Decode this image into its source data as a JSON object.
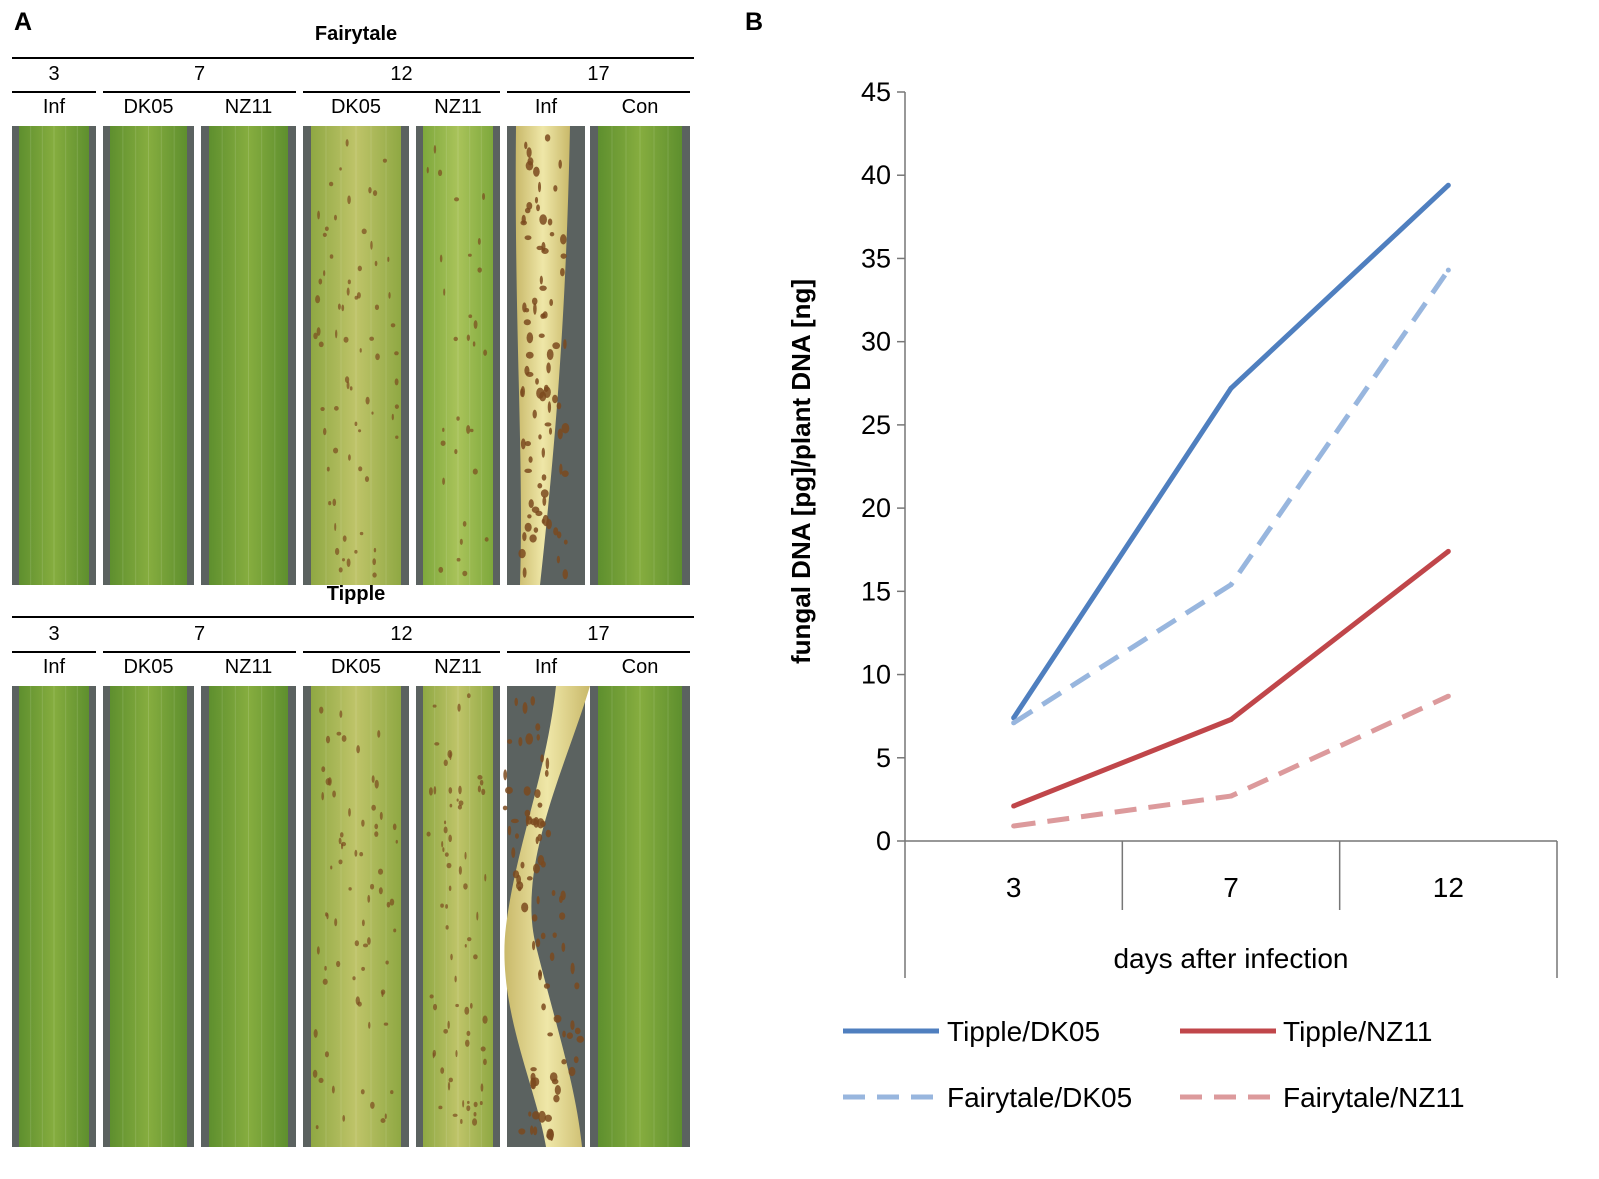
{
  "panel_labels": {
    "a": "A",
    "b": "B"
  },
  "colors": {
    "tipple_dk05": "#4f7fbf",
    "fairytale_dk05": "#98b6de",
    "tipple_nz11": "#c0464a",
    "fairytale_nz11": "#dc9a9c",
    "leaf_green": "#6f9e36",
    "leaf_light": "#9dbd4e",
    "leaf_yellow": "#d6cf7a",
    "lesion": "#7b4a1e",
    "background_dark": "#5b6260"
  },
  "panel_a": {
    "groups": [
      {
        "cultivar": "Fairytale",
        "days": [
          "3",
          "7",
          "12",
          "17"
        ],
        "leaves": [
          {
            "day": "3",
            "label": "Inf",
            "state": "healthy"
          },
          {
            "day": "7",
            "label": "DK05",
            "state": "healthy"
          },
          {
            "day": "7",
            "label": "NZ11",
            "state": "healthy"
          },
          {
            "day": "12",
            "label": "DK05",
            "state": "spotted"
          },
          {
            "day": "12",
            "label": "NZ11",
            "state": "light-spotted"
          },
          {
            "day": "17",
            "label": "Inf",
            "state": "diseased"
          },
          {
            "day": "17",
            "label": "Con",
            "state": "healthy"
          }
        ]
      },
      {
        "cultivar": "Tipple",
        "days": [
          "3",
          "7",
          "12",
          "17"
        ],
        "leaves": [
          {
            "day": "3",
            "label": "Inf",
            "state": "healthy"
          },
          {
            "day": "7",
            "label": "DK05",
            "state": "healthy"
          },
          {
            "day": "7",
            "label": "NZ11",
            "state": "healthy"
          },
          {
            "day": "12",
            "label": "DK05",
            "state": "spotted"
          },
          {
            "day": "12",
            "label": "NZ11",
            "state": "spotted"
          },
          {
            "day": "17",
            "label": "Inf",
            "state": "diseased"
          },
          {
            "day": "17",
            "label": "Con",
            "state": "healthy"
          }
        ]
      }
    ]
  },
  "chart_data": {
    "type": "line",
    "title": "",
    "xlabel": "days after infection",
    "ylabel": "fungal DNA [pg]/plant DNA [ng]",
    "categories": [
      "3",
      "7",
      "12"
    ],
    "ylim": [
      0,
      45
    ],
    "yticks": [
      "0",
      "5",
      "10",
      "15",
      "20",
      "25",
      "30",
      "35",
      "40",
      "45"
    ],
    "grid": false,
    "legend_position": "bottom",
    "series": [
      {
        "name": "Tipple/DK05",
        "values": [
          7.4,
          27.2,
          39.4
        ],
        "color": "#4f7fbf",
        "style": "solid"
      },
      {
        "name": "Tipple/NZ11",
        "values": [
          2.1,
          7.3,
          17.4
        ],
        "color": "#c0464a",
        "style": "solid"
      },
      {
        "name": "Fairytale/DK05",
        "values": [
          7.1,
          15.4,
          34.3
        ],
        "color": "#98b6de",
        "style": "dashed"
      },
      {
        "name": "Fairytale/NZ11",
        "values": [
          0.9,
          2.7,
          8.7
        ],
        "color": "#dc9a9c",
        "style": "dashed"
      }
    ]
  }
}
